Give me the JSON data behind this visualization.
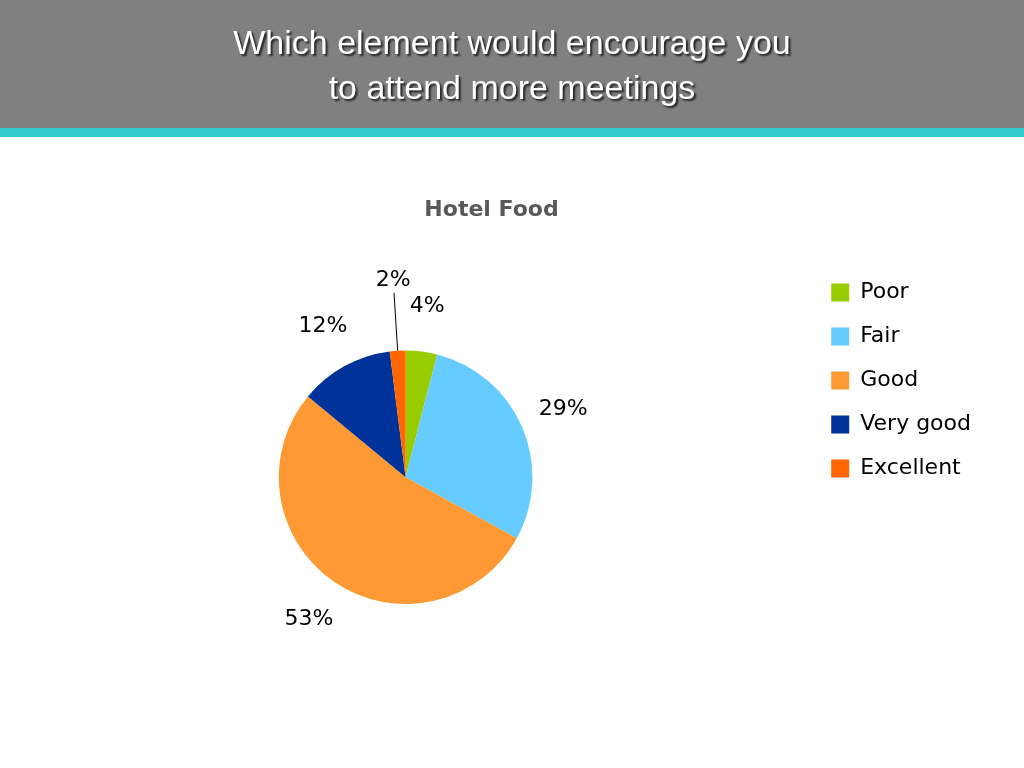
{
  "chart_data": {
    "type": "pie",
    "title": "Which element would encourage you\nto attend more meetings",
    "subtitle": "Hotel Food",
    "categories": [
      "Poor",
      "Fair",
      "Good",
      "Very good",
      "Excellent"
    ],
    "values": [
      4,
      29,
      53,
      12,
      2
    ],
    "colors": [
      "#99cc00",
      "#66ccff",
      "#ff9933",
      "#003399",
      "#ff6600"
    ],
    "value_labels": [
      "4%",
      "29%",
      "53%",
      "12%",
      "2%"
    ],
    "legend": "right"
  }
}
